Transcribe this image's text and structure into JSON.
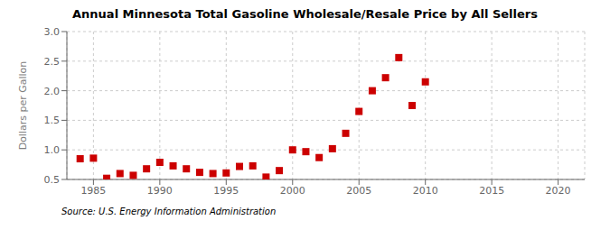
{
  "chart_data": {
    "type": "scatter",
    "title": "Annual Minnesota Total Gasoline Wholesale/Resale Price by All Sellers",
    "ylabel": "Dollars per Gallon",
    "annotations": [
      "Source: U.S. Energy Information Administration"
    ],
    "x": [
      1984,
      1985,
      1986,
      1987,
      1988,
      1989,
      1990,
      1991,
      1992,
      1993,
      1994,
      1995,
      1996,
      1997,
      1998,
      1999,
      2000,
      2001,
      2002,
      2003,
      2004,
      2005,
      2006,
      2007,
      2008,
      2009,
      2010
    ],
    "values": [
      0.85,
      0.86,
      0.52,
      0.6,
      0.57,
      0.68,
      0.79,
      0.73,
      0.68,
      0.62,
      0.6,
      0.61,
      0.72,
      0.73,
      0.54,
      0.65,
      1.0,
      0.97,
      0.87,
      1.02,
      1.28,
      1.65,
      2.0,
      2.22,
      2.56,
      1.75,
      2.15
    ],
    "color": "#cc0000",
    "marker": "square",
    "xlim": [
      1983,
      2022
    ],
    "ylim": [
      0.5,
      3.0
    ],
    "xticks": [
      1985,
      1990,
      1995,
      2000,
      2005,
      2010,
      2015,
      2020
    ],
    "yticks": [
      0.5,
      {
        "value": 1,
        "label": "1.0"
      },
      1.5,
      {
        "value": 2,
        "label": "2.0"
      },
      2.5,
      {
        "value": 3,
        "label": "3.0"
      }
    ],
    "grid": true
  }
}
